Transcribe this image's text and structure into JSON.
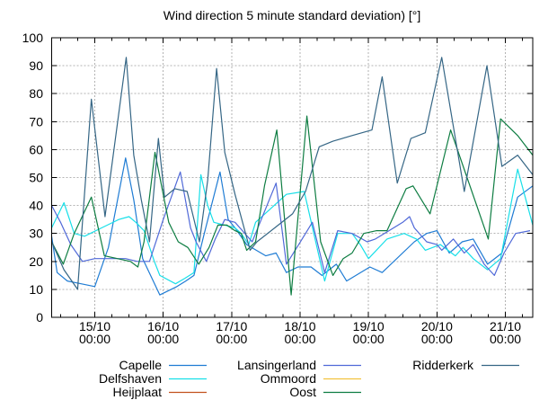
{
  "title": "Wind direction 5 minute standard deviation) [°]",
  "axes": {
    "y": {
      "min": 0,
      "max": 100,
      "tick_step": 10,
      "tick_labels": [
        "0",
        "10",
        "20",
        "30",
        "40",
        "50",
        "60",
        "70",
        "80",
        "90",
        "100"
      ]
    },
    "x": {
      "unit": "days relative to 15/10 00:00",
      "min_days": -0.63,
      "max_days": 6.4,
      "minor_tick_step_days": 0.25,
      "major_ticks": [
        {
          "t": 0,
          "date": "15/10",
          "time": "00:00"
        },
        {
          "t": 1,
          "date": "16/10",
          "time": "00:00"
        },
        {
          "t": 2,
          "date": "17/10",
          "time": "00:00"
        },
        {
          "t": 3,
          "date": "18/10",
          "time": "00:00"
        },
        {
          "t": 4,
          "date": "19/10",
          "time": "00:00"
        },
        {
          "t": 5,
          "date": "20/10",
          "time": "00:00"
        },
        {
          "t": 6,
          "date": "21/10",
          "time": "00:00"
        }
      ]
    }
  },
  "style": {
    "grid_color": "#b3b3b3",
    "border_color": "#000000",
    "background": "#ffffff"
  },
  "chart_data": {
    "type": "line",
    "title": "Wind direction 5 minute standard deviation) [°]",
    "xlabel": "",
    "ylabel": "",
    "ylim": [
      0,
      100
    ],
    "xlim_days": [
      -0.63,
      6.4
    ],
    "grid": true,
    "legend_position": "below",
    "x_unit": "days since 15/10 00:00",
    "series": [
      {
        "name": "Capelle",
        "color": "#1f7cd4",
        "points": [
          [
            -0.63,
            29
          ],
          [
            -0.55,
            16
          ],
          [
            -0.4,
            13
          ],
          [
            -0.2,
            12
          ],
          [
            0.0,
            11
          ],
          [
            0.2,
            25
          ],
          [
            0.45,
            57
          ],
          [
            0.57,
            42
          ],
          [
            0.7,
            21
          ],
          [
            0.95,
            8
          ],
          [
            1.2,
            11
          ],
          [
            1.33,
            13
          ],
          [
            1.45,
            15
          ],
          [
            1.6,
            30
          ],
          [
            1.83,
            52
          ],
          [
            1.95,
            35
          ],
          [
            2.05,
            32
          ],
          [
            2.22,
            26
          ],
          [
            2.5,
            22
          ],
          [
            2.65,
            23
          ],
          [
            2.8,
            16
          ],
          [
            2.97,
            18
          ],
          [
            3.16,
            18
          ],
          [
            3.32,
            15
          ],
          [
            3.53,
            19
          ],
          [
            3.68,
            13
          ],
          [
            4.02,
            18
          ],
          [
            4.2,
            16
          ],
          [
            4.67,
            27
          ],
          [
            4.85,
            30
          ],
          [
            5.0,
            31
          ],
          [
            5.18,
            23
          ],
          [
            5.37,
            27
          ],
          [
            5.53,
            28
          ],
          [
            5.74,
            19
          ],
          [
            5.95,
            23
          ],
          [
            6.18,
            43
          ],
          [
            6.4,
            47
          ]
        ]
      },
      {
        "name": "Delfshaven",
        "color": "#17dfe8",
        "points": [
          [
            -0.63,
            32
          ],
          [
            -0.45,
            41
          ],
          [
            -0.3,
            30
          ],
          [
            -0.15,
            29
          ],
          [
            0.1,
            32
          ],
          [
            0.35,
            35
          ],
          [
            0.5,
            36
          ],
          [
            0.6,
            34
          ],
          [
            0.72,
            31
          ],
          [
            0.87,
            20
          ],
          [
            0.95,
            15
          ],
          [
            1.18,
            12
          ],
          [
            1.32,
            14
          ],
          [
            1.45,
            16
          ],
          [
            1.55,
            51
          ],
          [
            1.65,
            40
          ],
          [
            1.74,
            34
          ],
          [
            1.9,
            33
          ],
          [
            2.05,
            32
          ],
          [
            2.14,
            30
          ],
          [
            2.25,
            26
          ],
          [
            2.35,
            34
          ],
          [
            2.8,
            44
          ],
          [
            3.06,
            45
          ],
          [
            3.36,
            13
          ],
          [
            3.55,
            30
          ],
          [
            3.76,
            30
          ],
          [
            3.88,
            26
          ],
          [
            4.0,
            21
          ],
          [
            4.27,
            28
          ],
          [
            4.52,
            30
          ],
          [
            4.7,
            28
          ],
          [
            4.83,
            24
          ],
          [
            5.05,
            26
          ],
          [
            5.27,
            22
          ],
          [
            5.38,
            25
          ],
          [
            5.53,
            21
          ],
          [
            5.74,
            17
          ],
          [
            5.93,
            21
          ],
          [
            6.18,
            53
          ],
          [
            6.4,
            33
          ]
        ]
      },
      {
        "name": "Heijplaat",
        "color": "#c2511d",
        "points": []
      },
      {
        "name": "Lansingerland",
        "color": "#5069d8",
        "points": [
          [
            -0.63,
            40
          ],
          [
            -0.5,
            34
          ],
          [
            -0.35,
            26
          ],
          [
            -0.18,
            20
          ],
          [
            0.0,
            21
          ],
          [
            0.23,
            21
          ],
          [
            0.45,
            21
          ],
          [
            0.62,
            20
          ],
          [
            0.8,
            20
          ],
          [
            1.0,
            35
          ],
          [
            1.25,
            52
          ],
          [
            1.4,
            32
          ],
          [
            1.48,
            27
          ],
          [
            1.63,
            20
          ],
          [
            1.76,
            28
          ],
          [
            1.9,
            35
          ],
          [
            2.05,
            34
          ],
          [
            2.3,
            27
          ],
          [
            2.65,
            48
          ],
          [
            2.8,
            19
          ],
          [
            2.98,
            26
          ],
          [
            3.18,
            34
          ],
          [
            3.36,
            16
          ],
          [
            3.55,
            31
          ],
          [
            3.76,
            30
          ],
          [
            3.98,
            27
          ],
          [
            4.1,
            28
          ],
          [
            4.5,
            34
          ],
          [
            4.6,
            36
          ],
          [
            4.67,
            32
          ],
          [
            4.85,
            27
          ],
          [
            5.0,
            26
          ],
          [
            5.07,
            24
          ],
          [
            5.24,
            28
          ],
          [
            5.4,
            23
          ],
          [
            5.53,
            26
          ],
          [
            5.69,
            19
          ],
          [
            5.84,
            15
          ],
          [
            5.98,
            23
          ],
          [
            6.15,
            30
          ],
          [
            6.36,
            31
          ]
        ]
      },
      {
        "name": "Ommoord",
        "color": "#f2c23e",
        "points": []
      },
      {
        "name": "Oost",
        "color": "#0e7d42",
        "points": [
          [
            -0.63,
            27
          ],
          [
            -0.46,
            19
          ],
          [
            -0.3,
            30
          ],
          [
            -0.05,
            43
          ],
          [
            0.14,
            22
          ],
          [
            0.33,
            21
          ],
          [
            0.52,
            20
          ],
          [
            0.63,
            18
          ],
          [
            0.72,
            27
          ],
          [
            0.88,
            59
          ],
          [
            1.08,
            34
          ],
          [
            1.22,
            27
          ],
          [
            1.36,
            25
          ],
          [
            1.52,
            19
          ],
          [
            1.67,
            25
          ],
          [
            1.8,
            33
          ],
          [
            1.93,
            33
          ],
          [
            2.05,
            31
          ],
          [
            2.14,
            30
          ],
          [
            2.22,
            24
          ],
          [
            2.35,
            27
          ],
          [
            2.48,
            47
          ],
          [
            2.66,
            67
          ],
          [
            2.87,
            8
          ],
          [
            3.1,
            72
          ],
          [
            3.3,
            27
          ],
          [
            3.48,
            15
          ],
          [
            3.63,
            21
          ],
          [
            3.76,
            23
          ],
          [
            3.93,
            30
          ],
          [
            4.12,
            31
          ],
          [
            4.27,
            31
          ],
          [
            4.55,
            46
          ],
          [
            4.65,
            47
          ],
          [
            4.9,
            37
          ],
          [
            5.2,
            67
          ],
          [
            5.75,
            28
          ],
          [
            5.93,
            71
          ],
          [
            6.18,
            65
          ],
          [
            6.4,
            58
          ]
        ]
      },
      {
        "name": "Ridderkerk",
        "color": "#356685",
        "points": [
          [
            -0.63,
            27
          ],
          [
            -0.45,
            17
          ],
          [
            -0.25,
            10
          ],
          [
            -0.05,
            78
          ],
          [
            0.15,
            36
          ],
          [
            0.46,
            93
          ],
          [
            0.57,
            58
          ],
          [
            0.68,
            42
          ],
          [
            0.8,
            27
          ],
          [
            0.93,
            64
          ],
          [
            1.02,
            43
          ],
          [
            1.17,
            46
          ],
          [
            1.35,
            45
          ],
          [
            1.53,
            27
          ],
          [
            1.65,
            49
          ],
          [
            1.78,
            89
          ],
          [
            1.9,
            59
          ],
          [
            2.05,
            44
          ],
          [
            2.27,
            24
          ],
          [
            2.37,
            27
          ],
          [
            2.63,
            32
          ],
          [
            2.89,
            37
          ],
          [
            3.08,
            45
          ],
          [
            3.28,
            61
          ],
          [
            3.48,
            63
          ],
          [
            3.76,
            65
          ],
          [
            4.05,
            67
          ],
          [
            4.2,
            86
          ],
          [
            4.42,
            48
          ],
          [
            4.62,
            64
          ],
          [
            4.83,
            66
          ],
          [
            5.07,
            93
          ],
          [
            5.4,
            45
          ],
          [
            5.73,
            90
          ],
          [
            5.95,
            54
          ],
          [
            6.18,
            58
          ],
          [
            6.4,
            51
          ]
        ]
      }
    ]
  },
  "legend": {
    "columns": [
      [
        "Capelle",
        "Delfshaven",
        "Heijplaat"
      ],
      [
        "Lansingerland",
        "Ommoord",
        "Oost"
      ],
      [
        "Ridderkerk"
      ]
    ]
  }
}
